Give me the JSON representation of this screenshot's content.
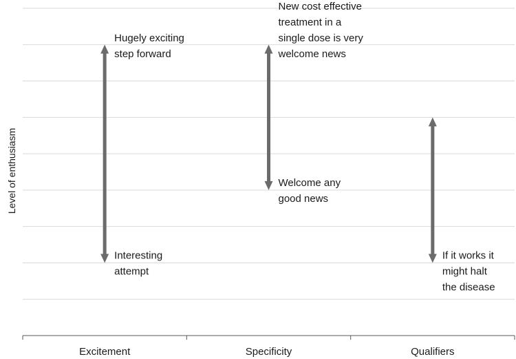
{
  "chart_data": {
    "type": "range",
    "title": "",
    "xlabel": "",
    "ylabel": "Level of enthusiasm",
    "categories": [
      "Excitement",
      "Specificity",
      "Qualifiers"
    ],
    "grid": "horizontal",
    "ylim": [
      0,
      9
    ],
    "ranges": [
      {
        "category": "Excitement",
        "low": 2,
        "high": 8,
        "high_label": [
          "Hugely exciting",
          "step forward"
        ],
        "low_label": [
          "Interesting",
          "attempt"
        ]
      },
      {
        "category": "Specificity",
        "low": 4,
        "high": 8,
        "high_label": [
          "New cost effective",
          "treatment in a",
          "single dose is very",
          "welcome news"
        ],
        "low_label": [
          "Welcome  any",
          "good news"
        ]
      },
      {
        "category": "Qualifiers",
        "low": 2,
        "high": 6,
        "high_label": [],
        "low_label": [
          "If it works it",
          "might halt",
          "the disease"
        ]
      }
    ],
    "colors": {
      "arrow": "#6b6b6b",
      "grid": "#d9d9d9",
      "axis": "#595959"
    }
  }
}
